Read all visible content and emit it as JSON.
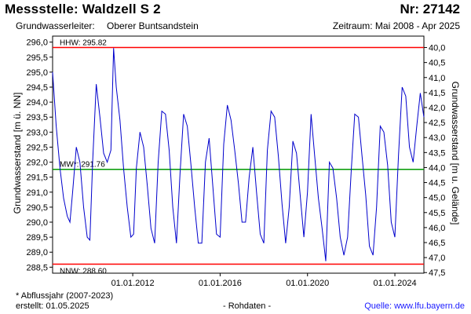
{
  "header": {
    "title": "Messstelle: Waldzell S 2",
    "number": "Nr: 27142",
    "aquifer_label": "Grundwasserleiter:",
    "aquifer_value": "Oberer Buntsandstein",
    "period": "Zeitraum: Mai 2008 - Apr 2025"
  },
  "footer": {
    "note": "* Abflussjahr (2007-2023)",
    "created": "erstellt:  01.05.2025",
    "raw": "- Rohdaten -",
    "source": "Quelle: www.lfu.bayern.de"
  },
  "colors": {
    "series": "#0000cc",
    "limit_line": "#ff0000",
    "mean_line": "#009900",
    "plot_bg": "#ffffff",
    "axis": "#000000"
  },
  "chart_data": {
    "type": "line",
    "ylabel": "Grundwasserstand [m ü. NN]",
    "y2label": "Grundwasserstand [m u. Gelände]",
    "ylim": [
      288.3,
      296.2
    ],
    "y_ticks": [
      "296,0",
      "295,5",
      "295,0",
      "294,5",
      "294,0",
      "293,5",
      "293,0",
      "292,5",
      "292,0",
      "291,5",
      "291,0",
      "290,5",
      "290,0",
      "289,5",
      "289,0",
      "288,5"
    ],
    "y2_ticks": [
      "40,0",
      "40,5",
      "41,0",
      "41,5",
      "42,0",
      "42,5",
      "43,0",
      "43,5",
      "44,0",
      "44,5",
      "45,0",
      "45,5",
      "46,0",
      "46,5",
      "47,0",
      "47,5"
    ],
    "y2_offset": 335.82,
    "xlim": [
      "2008-05-01",
      "2025-04-30"
    ],
    "x_ticks": [
      {
        "label": "01.01.2012",
        "date": "2012-01-01"
      },
      {
        "label": "01.01.2016",
        "date": "2016-01-01"
      },
      {
        "label": "01.01.2020",
        "date": "2020-01-01"
      },
      {
        "label": "01.01.2024",
        "date": "2024-01-01"
      }
    ],
    "reference_lines": [
      {
        "label": "HHW: 295.82",
        "value": 295.82,
        "kind": "max"
      },
      {
        "label": "MW*: 291.76",
        "value": 291.76,
        "kind": "mean"
      },
      {
        "label": "NNW: 288.60",
        "value": 288.6,
        "kind": "min"
      }
    ],
    "grid": false,
    "series": [
      {
        "x": [
          "2008-05-01",
          "2008-07-01",
          "2008-09-01",
          "2008-11-01",
          "2009-01-01",
          "2009-02-15",
          "2009-04-01",
          "2009-06-01",
          "2009-08-01",
          "2009-10-01",
          "2009-12-01",
          "2010-01-15",
          "2010-03-01",
          "2010-05-01",
          "2010-07-01",
          "2010-09-01",
          "2010-11-01",
          "2011-01-01",
          "2011-02-15",
          "2011-04-01",
          "2011-06-01",
          "2011-08-01",
          "2011-10-01",
          "2011-12-01",
          "2012-01-15",
          "2012-03-01",
          "2012-05-01",
          "2012-07-01",
          "2012-09-01",
          "2012-11-01",
          "2013-01-01",
          "2013-03-01",
          "2013-05-01",
          "2013-07-01",
          "2013-09-01",
          "2013-11-01",
          "2014-01-01",
          "2014-03-01",
          "2014-05-01",
          "2014-07-01",
          "2014-09-01",
          "2014-11-01",
          "2015-01-01",
          "2015-03-01",
          "2015-05-01",
          "2015-07-01",
          "2015-09-01",
          "2015-11-01",
          "2016-01-01",
          "2016-03-01",
          "2016-05-01",
          "2016-07-01",
          "2016-09-01",
          "2016-11-01",
          "2017-01-01",
          "2017-03-01",
          "2017-05-01",
          "2017-07-01",
          "2017-09-01",
          "2017-11-01",
          "2018-01-01",
          "2018-03-01",
          "2018-05-01",
          "2018-07-01",
          "2018-09-01",
          "2018-11-01",
          "2019-01-01",
          "2019-03-01",
          "2019-05-01",
          "2019-07-01",
          "2019-09-01",
          "2019-11-01",
          "2020-01-01",
          "2020-03-01",
          "2020-05-01",
          "2020-07-01",
          "2020-09-01",
          "2020-11-01",
          "2021-01-01",
          "2021-03-01",
          "2021-05-01",
          "2021-07-01",
          "2021-09-01",
          "2021-11-01",
          "2022-01-01",
          "2022-03-01",
          "2022-05-01",
          "2022-07-01",
          "2022-09-01",
          "2022-11-01",
          "2023-01-01",
          "2023-03-01",
          "2023-05-01",
          "2023-07-01",
          "2023-09-01",
          "2023-11-01",
          "2024-01-01",
          "2024-03-01",
          "2024-05-01",
          "2024-07-01",
          "2024-09-01",
          "2024-11-01",
          "2025-01-01",
          "2025-03-01",
          "2025-04-30"
        ],
        "y": [
          295.0,
          293.2,
          291.8,
          290.8,
          290.2,
          290.0,
          291.0,
          292.5,
          292.0,
          290.5,
          289.5,
          289.4,
          292.0,
          294.6,
          293.5,
          292.3,
          292.0,
          292.4,
          295.8,
          294.5,
          293.4,
          291.8,
          290.5,
          289.5,
          289.6,
          291.8,
          293.0,
          292.5,
          291.2,
          289.8,
          289.3,
          292.0,
          293.7,
          293.6,
          292.4,
          290.5,
          289.3,
          291.6,
          293.6,
          293.2,
          291.9,
          290.5,
          289.3,
          289.3,
          292.0,
          292.8,
          291.2,
          289.6,
          289.5,
          292.6,
          293.9,
          293.4,
          292.4,
          291.3,
          290.0,
          290.0,
          291.5,
          292.5,
          291.0,
          289.6,
          289.3,
          292.4,
          293.7,
          293.5,
          292.2,
          290.6,
          289.3,
          290.5,
          292.7,
          292.3,
          290.9,
          289.5,
          291.0,
          293.6,
          292.2,
          290.8,
          289.8,
          288.7,
          292.0,
          291.8,
          290.8,
          289.5,
          288.9,
          289.5,
          291.7,
          293.6,
          293.5,
          292.2,
          290.9,
          289.2,
          288.9,
          290.5,
          293.2,
          293.0,
          291.9,
          290.0,
          289.5,
          292.2,
          294.5,
          294.2,
          292.5,
          292.0,
          293.2,
          294.3,
          293.5
        ]
      }
    ]
  }
}
